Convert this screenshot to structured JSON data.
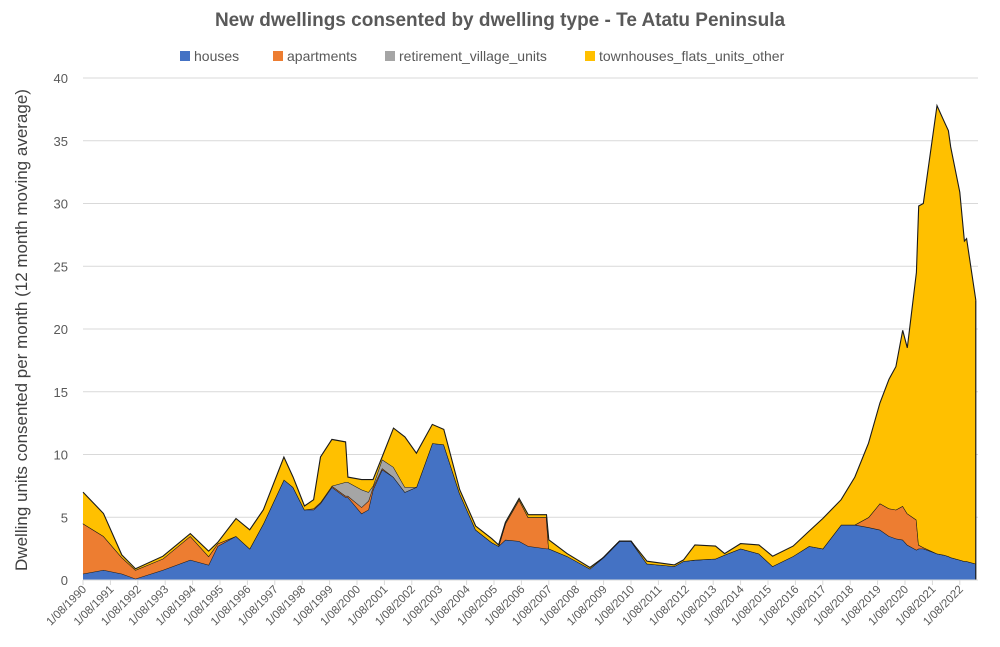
{
  "chart_data": {
    "type": "area",
    "stacked": true,
    "title": "New dwellings consented by dwelling type - Te Atatu Peninsula",
    "xlabel": "",
    "ylabel": "Dwelling units consented per month (12 month moving average)",
    "ylim": [
      0,
      40
    ],
    "yticks": [
      0,
      5,
      10,
      15,
      20,
      25,
      30,
      35,
      40
    ],
    "grid": true,
    "legend": "top",
    "xtick_labels": [
      "1/08/1990",
      "1/08/1991",
      "1/08/1992",
      "1/08/1993",
      "1/08/1994",
      "1/08/1995",
      "1/08/1996",
      "1/08/1997",
      "1/08/1998",
      "1/08/1999",
      "1/08/2000",
      "1/08/2001",
      "1/08/2002",
      "1/08/2003",
      "1/08/2004",
      "1/08/2005",
      "1/08/2006",
      "1/08/2007",
      "1/08/2008",
      "1/08/2009",
      "1/08/2010",
      "1/08/2011",
      "1/08/2012",
      "1/08/2013",
      "1/08/2014",
      "1/08/2015",
      "1/08/2016",
      "1/08/2017",
      "1/08/2018",
      "1/08/2019",
      "1/08/2020",
      "1/08/2021",
      "1/08/2022"
    ],
    "x": [
      "1990-08",
      "1991-05",
      "1992-01",
      "1992-07",
      "1993-07",
      "1994-07",
      "1995-03",
      "1995-07",
      "1996-03",
      "1996-09",
      "1997-03",
      "1997-12",
      "1998-04",
      "1998-09",
      "1999-01",
      "1999-04",
      "1999-09",
      "2000-03",
      "2000-04",
      "2000-10",
      "2001-01",
      "2001-03",
      "2001-07",
      "2001-12",
      "2002-05",
      "2002-10",
      "2003-05",
      "2003-10",
      "2004-05",
      "2004-12",
      "2005-07",
      "2005-10",
      "2006-01",
      "2006-07",
      "2006-11",
      "2007-07",
      "2007-08",
      "2008-04",
      "2009-02",
      "2009-08",
      "2010-03",
      "2010-08",
      "2011-03",
      "2012-03",
      "2012-07",
      "2012-12",
      "2013-09",
      "2014-01",
      "2014-08",
      "2015-04",
      "2015-10",
      "2016-07",
      "2017-02",
      "2017-08",
      "2018-04",
      "2018-10",
      "2019-04",
      "2019-09",
      "2020-01",
      "2020-04",
      "2020-07",
      "2020-09",
      "2021-01",
      "2021-02",
      "2021-04",
      "2021-10",
      "2022-01",
      "2022-03",
      "2022-04",
      "2022-08",
      "2022-10",
      "2022-11",
      "2023-03"
    ],
    "series": [
      {
        "name": "houses",
        "color": "#4472C4",
        "values": [
          0.5,
          0.8,
          0.5,
          0.1,
          0.8,
          1.6,
          1.2,
          2.7,
          3.5,
          2.5,
          4.5,
          8.0,
          7.4,
          5.6,
          5.6,
          6.1,
          7.4,
          6.6,
          6.6,
          5.3,
          5.6,
          7.2,
          8.8,
          8.2,
          7.0,
          7.4,
          10.9,
          10.8,
          6.9,
          4.0,
          3.0,
          2.7,
          3.2,
          3.1,
          2.7,
          2.5,
          2.5,
          1.9,
          0.9,
          1.8,
          3.1,
          3.1,
          1.3,
          1.1,
          1.5,
          1.6,
          1.7,
          2.0,
          2.5,
          2.1,
          1.1,
          1.9,
          2.7,
          2.5,
          4.4,
          4.4,
          4.2,
          4.0,
          3.5,
          3.3,
          3.2,
          2.8,
          2.4,
          2.5,
          2.5,
          2.1,
          2.0,
          1.9,
          1.8,
          1.6,
          1.5,
          1.5,
          1.3
        ]
      },
      {
        "name": "apartments",
        "color": "#ED7D31",
        "values": [
          4.0,
          2.7,
          1.3,
          0.7,
          0.9,
          1.9,
          0.7,
          0.2,
          0,
          0,
          0,
          0,
          0,
          0,
          0.1,
          0.1,
          0.1,
          0.1,
          0.1,
          0.5,
          0.7,
          0.2,
          0.1,
          0,
          0,
          0,
          0,
          0,
          0,
          0,
          0,
          0,
          1.3,
          3.3,
          2.3,
          2.5,
          0,
          0,
          0,
          0,
          0,
          0,
          0,
          0,
          0,
          0,
          0,
          0,
          0,
          0,
          0,
          0,
          0,
          0,
          0,
          0,
          0.8,
          2.1,
          2.2,
          2.3,
          2.7,
          2.5,
          2.4,
          0.3,
          0.1,
          0,
          0,
          0,
          0,
          0,
          0,
          0,
          0
        ]
      },
      {
        "name": "retirement_village_units",
        "color": "#A5A5A5",
        "values": [
          0,
          0,
          0,
          0,
          0,
          0,
          0,
          0,
          0,
          0,
          0,
          0,
          0,
          0,
          0,
          0,
          0,
          1.1,
          1.1,
          1.4,
          0.7,
          0.1,
          0.7,
          0.8,
          0.4,
          0,
          0,
          0,
          0,
          0,
          0,
          0,
          0,
          0,
          0,
          0,
          0,
          0,
          0,
          0,
          0,
          0,
          0,
          0,
          0,
          0,
          0,
          0,
          0,
          0,
          0,
          0,
          0,
          0,
          0,
          0,
          0,
          0,
          0,
          0,
          0,
          0,
          0,
          0,
          0,
          0,
          0,
          0,
          0,
          0,
          0,
          0,
          0
        ]
      },
      {
        "name": "townhouses_flats_units_other",
        "color": "#FFC000",
        "values": [
          2.5,
          1.8,
          0.2,
          0.1,
          0.2,
          0.2,
          0.4,
          0.1,
          1.4,
          1.5,
          1.1,
          1.8,
          0.8,
          0.3,
          0.7,
          3.6,
          3.7,
          3.2,
          0.4,
          0.8,
          1.0,
          0.5,
          0.2,
          3.1,
          4.0,
          2.7,
          1.5,
          1.2,
          0.3,
          0.3,
          0.3,
          0.1,
          0.1,
          0.1,
          0.2,
          0.2,
          0.7,
          0.2,
          0.1,
          0,
          0,
          0,
          0.2,
          0.1,
          0.1,
          1.2,
          1.0,
          0.1,
          0.4,
          0.7,
          0.8,
          0.8,
          1.2,
          2.4,
          2.0,
          3.8,
          5.9,
          8.0,
          10.3,
          11.4,
          14.0,
          13.2,
          19.7,
          27.0,
          27.4,
          35.7,
          34.6,
          33.9,
          32.7,
          29.3,
          25.5,
          25.7,
          21.0
        ]
      }
    ]
  }
}
